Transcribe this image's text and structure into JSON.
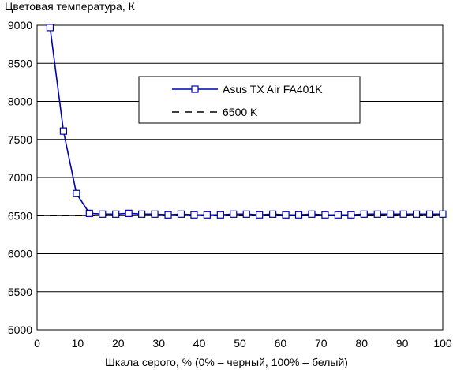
{
  "chart_data": {
    "type": "line",
    "title": "",
    "ylabel": "Цветовая температура, К",
    "xlabel": "Шкала серого, % (0% – черный, 100% – белый)",
    "xlim": [
      0,
      100
    ],
    "ylim": [
      5000,
      9000
    ],
    "xticks": [
      "0",
      "10",
      "20",
      "30",
      "40",
      "50",
      "60",
      "70",
      "80",
      "90",
      "100"
    ],
    "yticks": [
      "5000",
      "5500",
      "6000",
      "6500",
      "7000",
      "7500",
      "8000",
      "8500",
      "9000"
    ],
    "grid": true,
    "legend_position": "upper-center",
    "series": [
      {
        "name": "Asus TX Air FA401K",
        "color": "#0000b0",
        "style": "solid",
        "marker": "square",
        "x": [
          3.2,
          6.5,
          9.7,
          12.9,
          16.1,
          19.4,
          22.6,
          25.8,
          29.0,
          32.3,
          35.5,
          38.7,
          41.9,
          45.2,
          48.4,
          51.6,
          54.8,
          58.1,
          61.3,
          64.5,
          67.7,
          71.0,
          74.2,
          77.4,
          80.6,
          83.9,
          87.1,
          90.3,
          93.5,
          96.8,
          100.0
        ],
        "y": [
          8970,
          7610,
          6790,
          6530,
          6520,
          6520,
          6530,
          6520,
          6520,
          6510,
          6520,
          6510,
          6510,
          6510,
          6520,
          6520,
          6510,
          6520,
          6510,
          6510,
          6520,
          6510,
          6510,
          6510,
          6520,
          6520,
          6520,
          6520,
          6520,
          6520,
          6520
        ]
      },
      {
        "name": "6500 K",
        "color": "#000000",
        "style": "dashed",
        "marker": "none",
        "x": [
          0,
          100
        ],
        "y": [
          6500,
          6500
        ]
      }
    ]
  }
}
